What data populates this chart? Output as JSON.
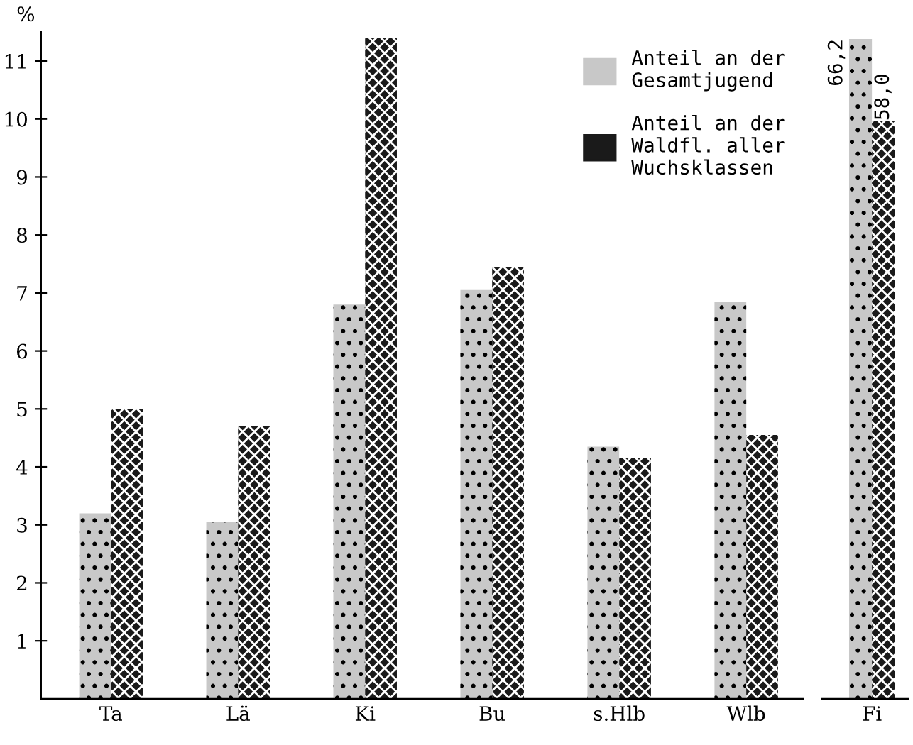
{
  "chart_data": [
    {
      "type": "bar",
      "ylabel": "%",
      "categories": [
        "Ta",
        "Lä",
        "Ki",
        "Bu",
        "s.Hlb",
        "Wlb"
      ],
      "series": [
        {
          "name": "Anteil an der\nGesamtjugend",
          "color": "#c8c8c8",
          "values": [
            3.2,
            3.05,
            6.8,
            7.05,
            4.35,
            6.85
          ]
        },
        {
          "name": "Anteil an der\nWaldfl. aller\nWuchsklassen",
          "color": "#1a1a1a",
          "values": [
            5.0,
            4.7,
            11.4,
            7.45,
            4.15,
            4.55
          ]
        }
      ],
      "ylim": [
        0,
        11.5
      ],
      "yticks": [
        1,
        2,
        3,
        4,
        5,
        6,
        7,
        8,
        9,
        10,
        11
      ],
      "grid": false,
      "legend": "top right"
    },
    {
      "type": "bar",
      "categories": [
        "Fi"
      ],
      "series": [
        {
          "color": "#c8c8c8",
          "values": [
            66.2
          ],
          "value_labels": [
            "66,2"
          ]
        },
        {
          "color": "#1a1a1a",
          "values": [
            58.0
          ],
          "value_labels": [
            "58,0"
          ]
        }
      ],
      "tick_labels": "x",
      "grid": false,
      "legend": false
    }
  ]
}
